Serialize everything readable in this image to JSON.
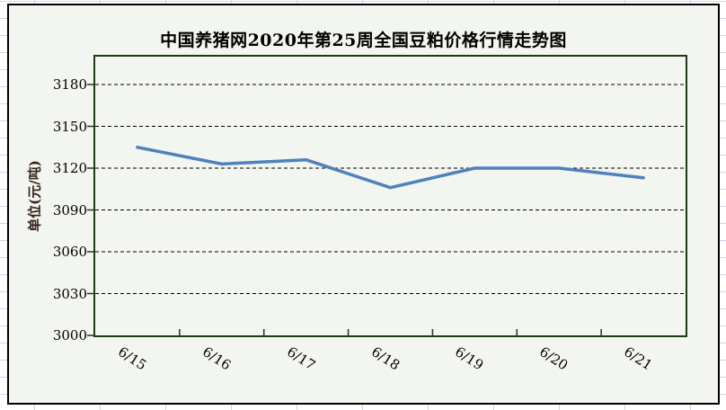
{
  "chart_data": {
    "type": "line",
    "title": "中国养猪网2020年第25周全国豆粕价格行情走势图",
    "ylabel": "单位(元/吨)",
    "xlabel": "",
    "categories": [
      "6/15",
      "6/16",
      "6/17",
      "6/18",
      "6/19",
      "6/20",
      "6/21"
    ],
    "values": [
      3135,
      3123,
      3126,
      3106,
      3120,
      3120,
      3113
    ],
    "ylim": [
      3000,
      3200
    ],
    "yticks": [
      3000,
      3030,
      3060,
      3090,
      3120,
      3150,
      3180
    ],
    "grid": "horizontal-dashed-black",
    "legend": "none",
    "markers": "none",
    "line_color": "#4f81bd",
    "axis_color": "#1d3a14",
    "gridline_color": "#000000",
    "chart_background": "#f3f5f0",
    "frame_border_color": "#000000",
    "sheet_grid_color": "#ccd5e4"
  }
}
